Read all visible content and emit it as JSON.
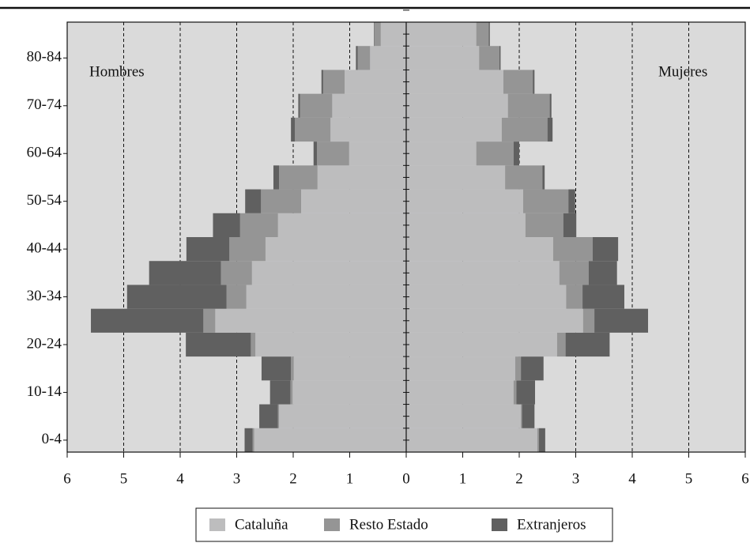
{
  "chart_data": {
    "type": "pyramid",
    "categories": [
      "0-4",
      null,
      "10-14",
      null,
      "20-24",
      null,
      "30-34",
      null,
      "40-44",
      null,
      "50-54",
      null,
      "60-64",
      null,
      "70-74",
      null,
      "80-84",
      null
    ],
    "series": [
      {
        "name": "Cataluña",
        "color": "#bdbdbe"
      },
      {
        "name": "Resto Estado",
        "color": "#959595"
      },
      {
        "name": "Extranjeros",
        "color": "#606060"
      }
    ],
    "sides": [
      {
        "label": "Hombres",
        "values": [
          [
            2.69,
            2.25,
            2.01,
            1.99,
            2.67,
            3.38,
            2.83,
            2.73,
            2.49,
            2.27,
            1.86,
            1.57,
            1.01,
            1.34,
            1.31,
            1.09,
            0.64,
            0.45
          ],
          [
            0.03,
            0.02,
            0.04,
            0.05,
            0.08,
            0.21,
            0.35,
            0.55,
            0.64,
            0.67,
            0.71,
            0.68,
            0.57,
            0.63,
            0.57,
            0.38,
            0.22,
            0.11
          ],
          [
            0.14,
            0.33,
            0.36,
            0.52,
            1.15,
            1.99,
            1.76,
            1.27,
            0.76,
            0.48,
            0.28,
            0.1,
            0.06,
            0.07,
            0.03,
            0.03,
            0.03,
            0.01
          ]
        ]
      },
      {
        "label": "Mujeres",
        "values": [
          [
            2.32,
            2.03,
            1.9,
            1.93,
            2.67,
            3.13,
            2.83,
            2.71,
            2.6,
            2.11,
            2.07,
            1.75,
            1.24,
            1.69,
            1.8,
            1.72,
            1.29,
            1.24
          ],
          [
            0.03,
            0.02,
            0.05,
            0.1,
            0.15,
            0.2,
            0.29,
            0.52,
            0.7,
            0.67,
            0.8,
            0.66,
            0.66,
            0.81,
            0.74,
            0.52,
            0.36,
            0.22
          ],
          [
            0.11,
            0.22,
            0.33,
            0.4,
            0.78,
            0.95,
            0.74,
            0.5,
            0.45,
            0.23,
            0.12,
            0.04,
            0.1,
            0.09,
            0.03,
            0.03,
            0.02,
            0.02
          ]
        ]
      }
    ],
    "xlim": [
      0,
      6
    ],
    "xticks": [
      0,
      1,
      2,
      3,
      4,
      5,
      6
    ],
    "grid": true,
    "legend": "bottom"
  }
}
